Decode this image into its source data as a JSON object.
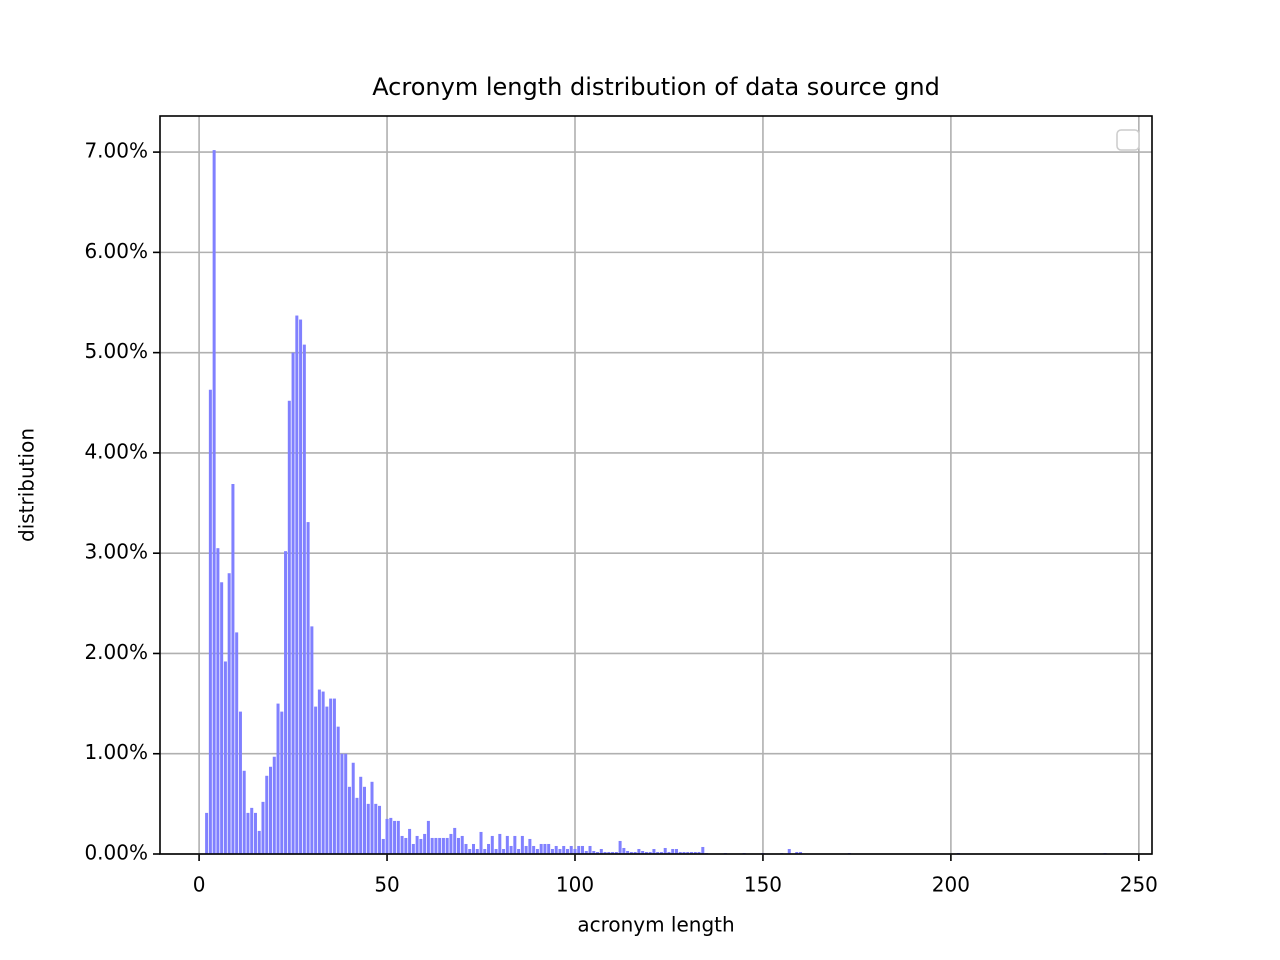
{
  "chart_data": {
    "type": "bar",
    "title": "Acronym length distribution of data source gnd",
    "x_label": "acronym length",
    "y_label": "distribution",
    "color": "#8080ff",
    "grid": true,
    "xlim": [
      -10.4,
      253.5
    ],
    "xticks": [
      0,
      50,
      100,
      150,
      200,
      250
    ],
    "ylim": [
      0,
      7.36
    ],
    "yticks": [
      {
        "value": 0,
        "label": "0.00%"
      },
      {
        "value": 1,
        "label": "1.00%"
      },
      {
        "value": 2,
        "label": "2.00%"
      },
      {
        "value": 3,
        "label": "3.00%"
      },
      {
        "value": 4,
        "label": "4.00%"
      },
      {
        "value": 5,
        "label": "5.00%"
      },
      {
        "value": 6,
        "label": "6.00%"
      },
      {
        "value": 7,
        "label": "7.00%"
      }
    ],
    "x": [
      2,
      3,
      4,
      5,
      6,
      7,
      8,
      9,
      10,
      11,
      12,
      13,
      14,
      15,
      16,
      17,
      18,
      19,
      20,
      21,
      22,
      23,
      24,
      25,
      26,
      27,
      28,
      29,
      30,
      31,
      32,
      33,
      34,
      35,
      36,
      37,
      38,
      39,
      40,
      41,
      42,
      43,
      44,
      45,
      46,
      47,
      48,
      49,
      50,
      51,
      52,
      53,
      54,
      55,
      56,
      57,
      58,
      59,
      60,
      61,
      62,
      63,
      64,
      65,
      66,
      67,
      68,
      69,
      70,
      71,
      72,
      73,
      74,
      75,
      76,
      77,
      78,
      79,
      80,
      81,
      82,
      83,
      84,
      85,
      86,
      87,
      88,
      89,
      90,
      91,
      92,
      93,
      94,
      95,
      96,
      97,
      98,
      99,
      100,
      101,
      102,
      103,
      104,
      105,
      106,
      107,
      108,
      109,
      110,
      111,
      112,
      113,
      114,
      115,
      116,
      117,
      118,
      119,
      120,
      121,
      122,
      123,
      124,
      125,
      126,
      127,
      128,
      129,
      130,
      131,
      132,
      133,
      134,
      135,
      140,
      145,
      150,
      155,
      157,
      159,
      160,
      173,
      202,
      241
    ],
    "values": [
      0.41,
      4.63,
      7.02,
      3.05,
      2.71,
      1.92,
      2.8,
      3.69,
      2.21,
      1.42,
      0.83,
      0.41,
      0.46,
      0.41,
      0.23,
      0.52,
      0.78,
      0.87,
      0.97,
      1.5,
      1.42,
      3.02,
      4.52,
      5.0,
      5.37,
      5.33,
      5.08,
      3.31,
      2.27,
      1.47,
      1.64,
      1.62,
      1.47,
      1.55,
      1.55,
      1.27,
      1.0,
      1.0,
      0.67,
      0.91,
      0.56,
      0.77,
      0.67,
      0.5,
      0.72,
      0.5,
      0.48,
      0.15,
      0.35,
      0.36,
      0.33,
      0.33,
      0.18,
      0.16,
      0.25,
      0.1,
      0.18,
      0.15,
      0.2,
      0.33,
      0.16,
      0.16,
      0.16,
      0.16,
      0.16,
      0.2,
      0.26,
      0.16,
      0.18,
      0.1,
      0.05,
      0.1,
      0.05,
      0.22,
      0.05,
      0.1,
      0.18,
      0.05,
      0.2,
      0.05,
      0.18,
      0.08,
      0.18,
      0.05,
      0.18,
      0.08,
      0.15,
      0.08,
      0.05,
      0.1,
      0.1,
      0.1,
      0.05,
      0.08,
      0.05,
      0.08,
      0.05,
      0.08,
      0.05,
      0.08,
      0.08,
      0.03,
      0.08,
      0.03,
      0.02,
      0.05,
      0.02,
      0.02,
      0.02,
      0.02,
      0.13,
      0.06,
      0.03,
      0.02,
      0.02,
      0.05,
      0.03,
      0.02,
      0.02,
      0.05,
      0.02,
      0.02,
      0.06,
      0.02,
      0.05,
      0.05,
      0.02,
      0.02,
      0.02,
      0.02,
      0.02,
      0.02,
      0.07,
      0.01,
      0.01,
      0.01,
      0.01,
      0.01,
      0.05,
      0.02,
      0.02,
      0.01,
      0.01,
      0.01
    ]
  }
}
